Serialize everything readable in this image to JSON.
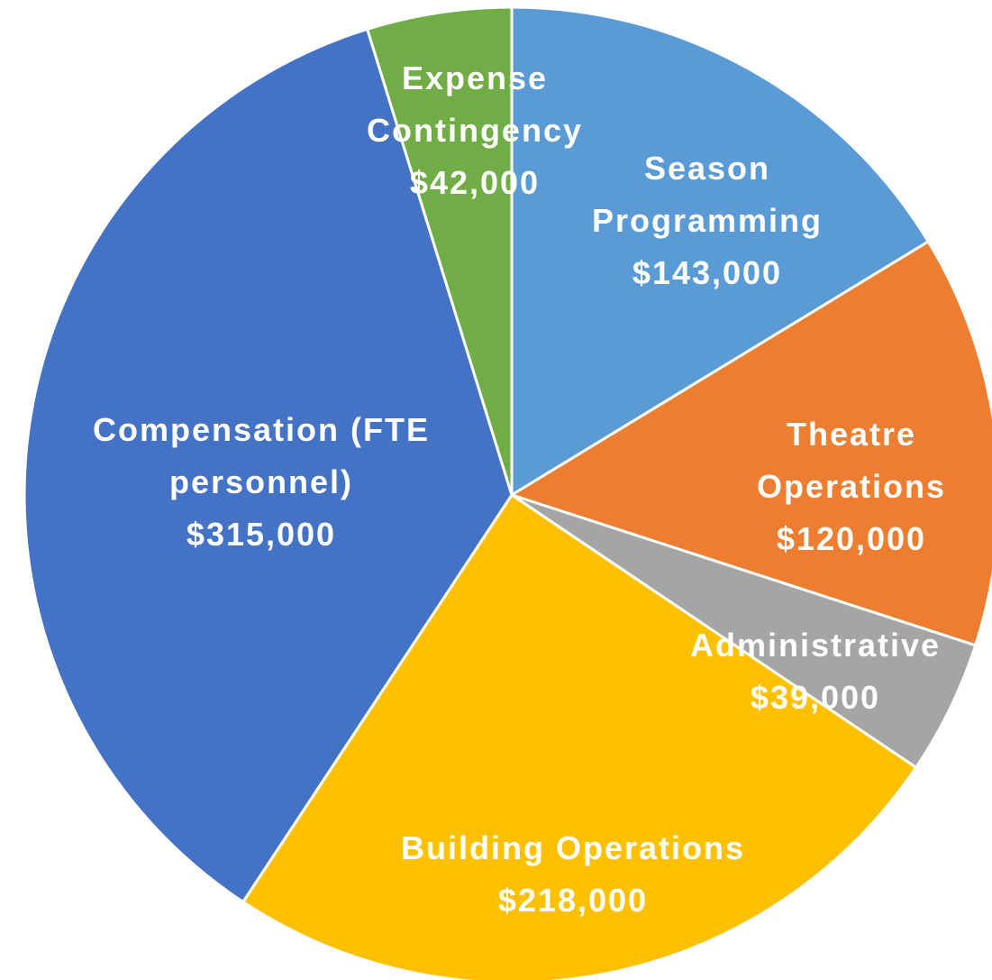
{
  "chart_data": {
    "type": "pie",
    "categories": [
      "Season Programming",
      "Theatre Operations",
      "Administrative",
      "Building Operations",
      "Compensation (FTE personnel)",
      "Expense Contingency"
    ],
    "values": [
      143000,
      120000,
      39000,
      218000,
      315000,
      42000
    ],
    "value_labels": [
      "$143,000",
      "$120,000",
      "$39,000",
      "$218,000",
      "$315,000",
      "$42,000"
    ],
    "colors": [
      "#5b9bd5",
      "#ed7d31",
      "#a5a5a5",
      "#ffc000",
      "#4472c4",
      "#70ad47"
    ]
  }
}
